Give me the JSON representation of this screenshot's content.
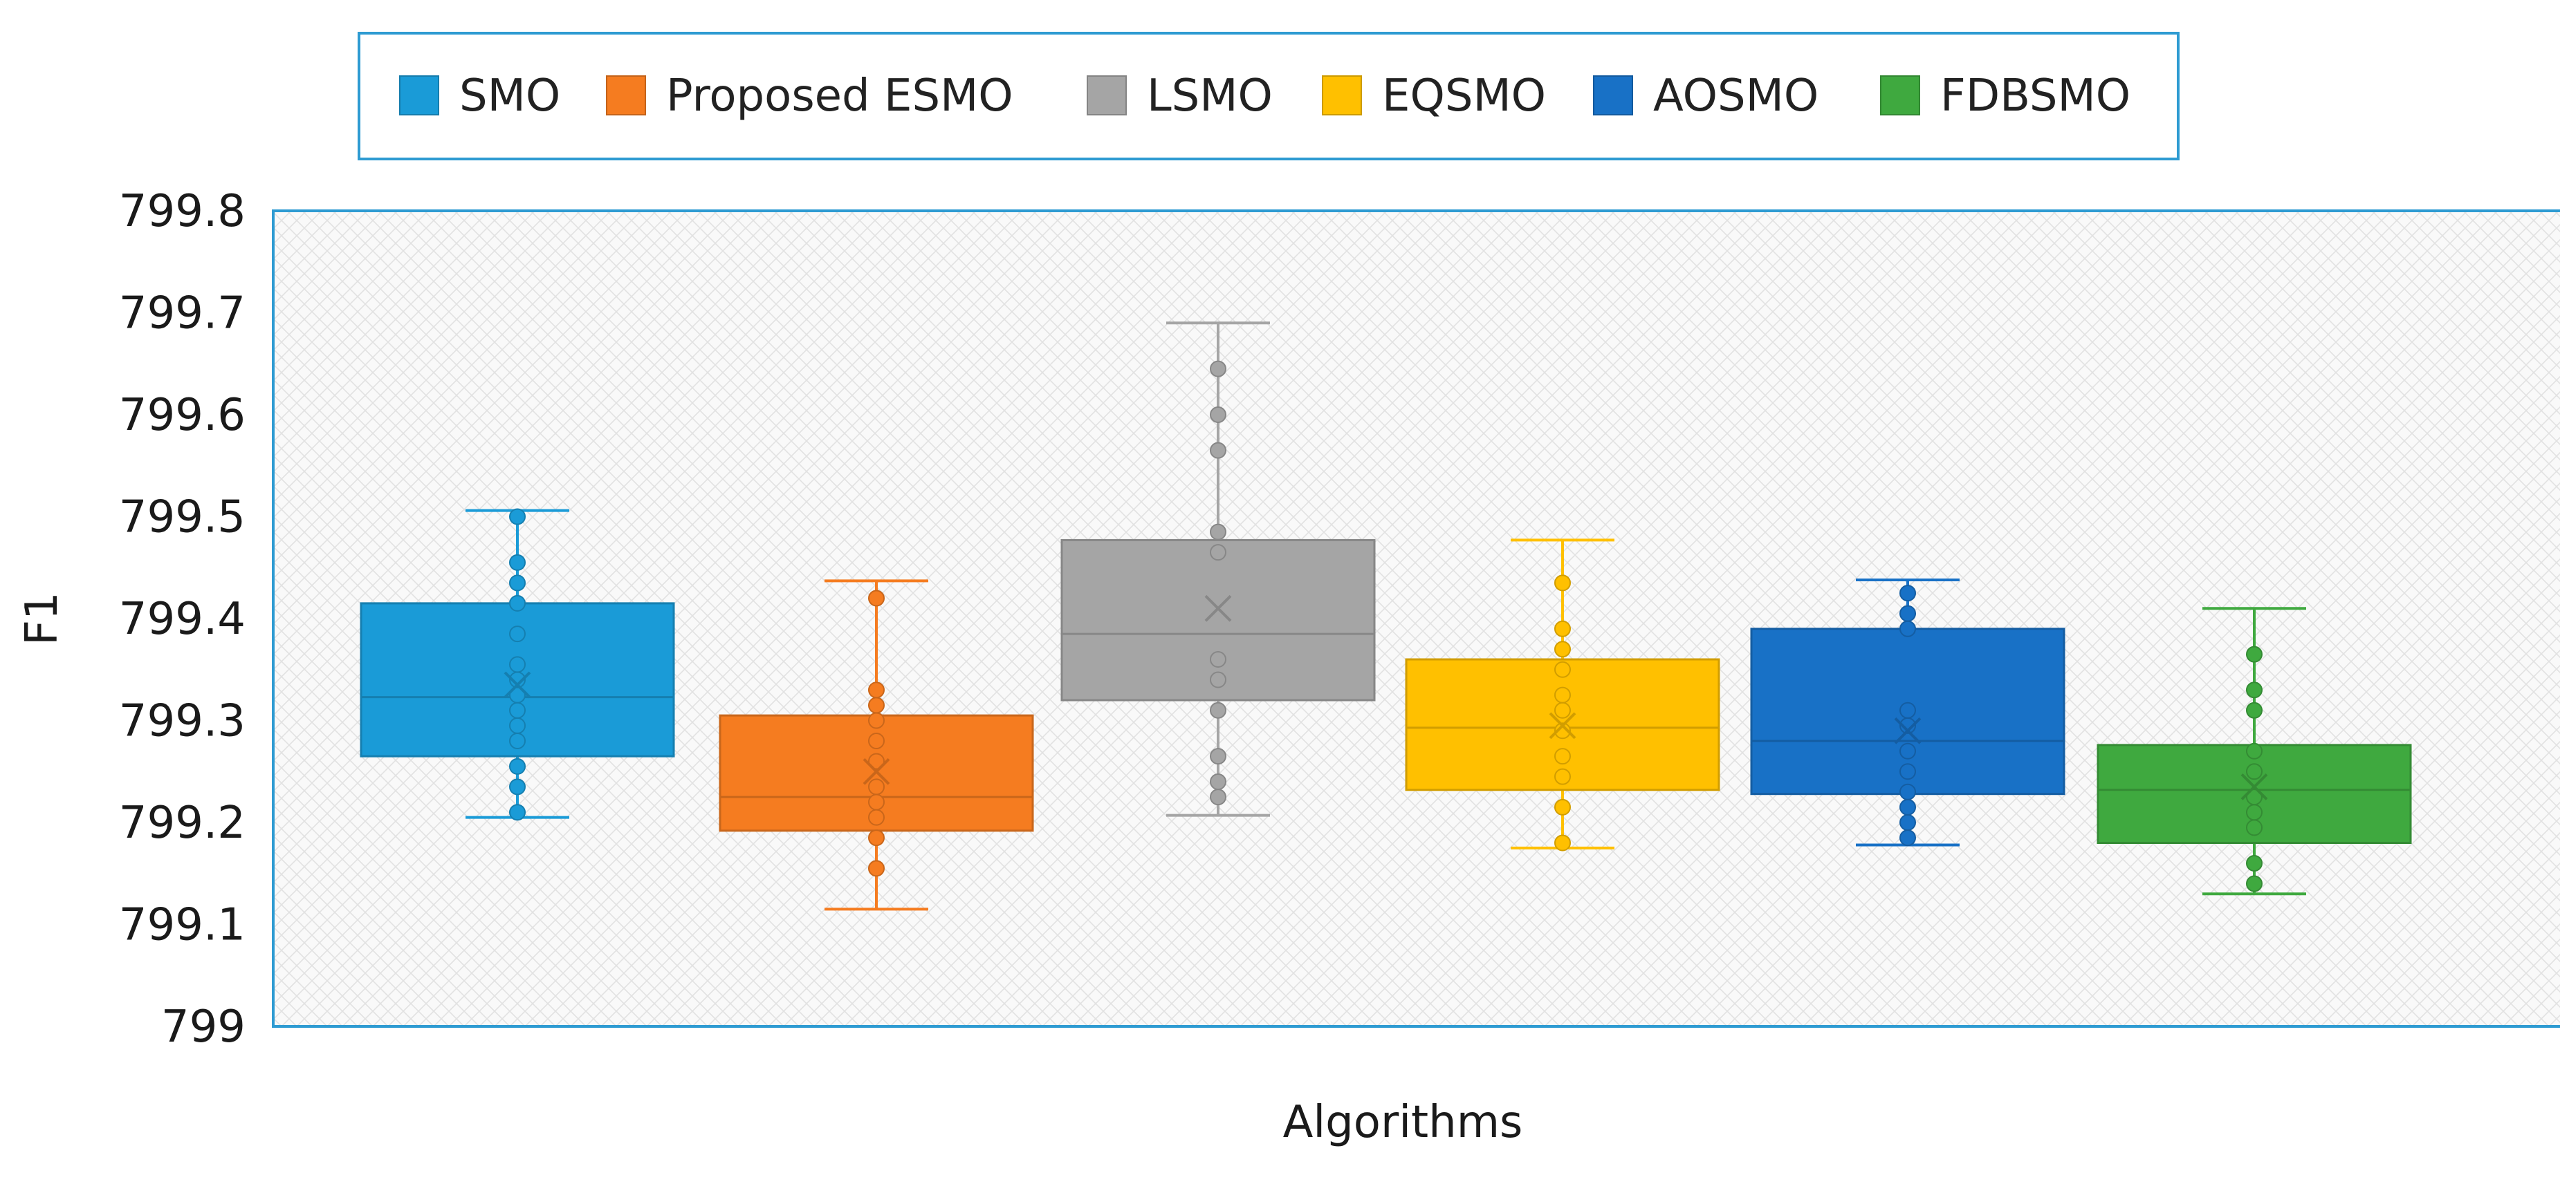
{
  "chart_data": {
    "type": "box",
    "xlabel": "Algorithms",
    "ylabel": "F1",
    "ylim": [
      799,
      799.8
    ],
    "yticks": [
      799,
      799.1,
      799.2,
      799.3,
      799.4,
      799.5,
      799.6,
      799.7,
      799.8
    ],
    "ytick_labels": [
      "799",
      "799.1",
      "799.2",
      "799.3",
      "799.4",
      "799.5",
      "799.6",
      "799.7",
      "799.8"
    ],
    "legend_position": "top",
    "series": [
      {
        "name": "SMO",
        "color": "#1a9bd7",
        "min": 799.205,
        "q1": 799.265,
        "median": 799.323,
        "q3": 799.415,
        "max": 799.506,
        "mean": 799.335,
        "points": [
          799.21,
          799.235,
          799.255,
          799.28,
          799.295,
          799.31,
          799.325,
          799.34,
          799.355,
          799.385,
          799.415,
          799.435,
          799.455,
          799.5
        ]
      },
      {
        "name": "Proposed ESMO",
        "color": "#f57c20",
        "min": 799.115,
        "q1": 799.192,
        "median": 799.225,
        "q3": 799.305,
        "max": 799.437,
        "mean": 799.25,
        "points": [
          799.155,
          799.185,
          799.205,
          799.22,
          799.235,
          799.26,
          799.28,
          799.3,
          799.315,
          799.33,
          799.42
        ]
      },
      {
        "name": "LSMO",
        "color": "#a5a5a5",
        "min": 799.207,
        "q1": 799.32,
        "median": 799.385,
        "q3": 799.477,
        "max": 799.69,
        "mean": 799.41,
        "points": [
          799.225,
          799.24,
          799.265,
          799.31,
          799.34,
          799.36,
          799.465,
          799.485,
          799.565,
          799.6,
          799.645
        ]
      },
      {
        "name": "EQSMO",
        "color": "#ffc000",
        "min": 799.175,
        "q1": 799.232,
        "median": 799.293,
        "q3": 799.36,
        "max": 799.477,
        "mean": 799.295,
        "points": [
          799.18,
          799.215,
          799.245,
          799.265,
          799.29,
          799.31,
          799.325,
          799.35,
          799.37,
          799.39,
          799.435
        ]
      },
      {
        "name": "AOSMO",
        "color": "#1871c6",
        "min": 799.178,
        "q1": 799.228,
        "median": 799.28,
        "q3": 799.39,
        "max": 799.438,
        "mean": 799.29,
        "points": [
          799.185,
          799.2,
          799.215,
          799.23,
          799.25,
          799.27,
          799.295,
          799.31,
          799.39,
          799.405,
          799.425
        ]
      },
      {
        "name": "FDBSMO",
        "color": "#3fa93f",
        "min": 799.13,
        "q1": 799.18,
        "median": 799.232,
        "q3": 799.276,
        "max": 799.41,
        "mean": 799.235,
        "points": [
          799.14,
          799.16,
          799.195,
          799.21,
          799.225,
          799.25,
          799.27,
          799.31,
          799.33,
          799.365
        ]
      }
    ]
  }
}
